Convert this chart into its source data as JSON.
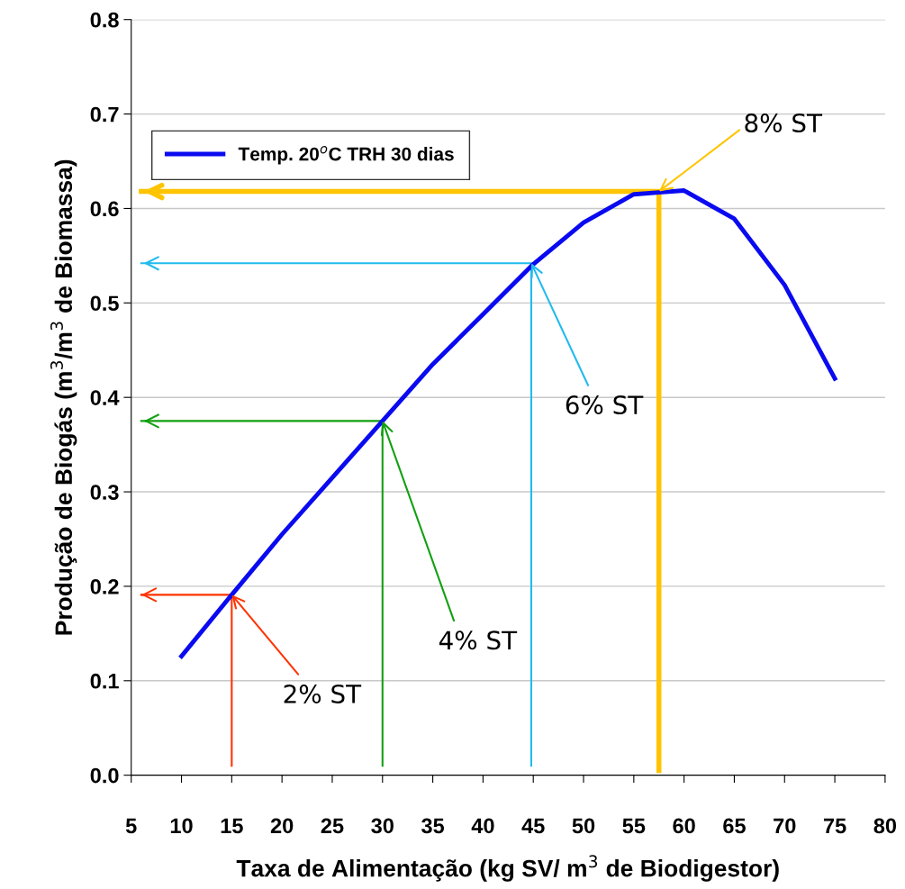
{
  "chart_data": {
    "type": "line",
    "xlabel": "Taxa de Alimentação (kg SV/ m$^{3}$ de Biodigestor)",
    "ylabel": "Produção de Biogás (m$^{3}$/m$^{3}$ de Biomassa)",
    "xlim": [
      5,
      80
    ],
    "xticks": [
      5,
      10,
      15,
      20,
      25,
      30,
      35,
      40,
      45,
      50,
      55,
      60,
      65,
      70,
      75,
      80
    ],
    "ylim": [
      0,
      0.8
    ],
    "yticks": [
      {
        "value": 0,
        "label": "0.0"
      },
      {
        "value": 0.1,
        "label": "0.1"
      },
      {
        "value": 0.2,
        "label": "0.2"
      },
      {
        "value": 0.3,
        "label": "0.3"
      },
      {
        "value": 0.4,
        "label": "0.4"
      },
      {
        "value": 0.5,
        "label": "0.5"
      },
      {
        "value": 0.6,
        "label": "0.6"
      },
      {
        "value": 0.7,
        "label": "0.7"
      },
      {
        "value": 0.8,
        "label": "0.8"
      }
    ],
    "grid": "y",
    "legend": "top left",
    "line_style": "solid",
    "series": [
      {
        "name": "Temp. 20$^{o}$C TRH 30 dias",
        "color": "#0a0af0",
        "x": [
          10,
          15,
          20,
          25,
          30,
          35,
          40,
          45,
          50,
          55,
          57.5,
          60,
          65,
          70,
          75
        ],
        "values": [
          0.126,
          0.191,
          0.255,
          0.315,
          0.375,
          0.435,
          0.488,
          0.541,
          0.585,
          0.615,
          0.617,
          0.619,
          0.589,
          0.519,
          0.42
        ]
      },
      {
        "color": "#ff3300",
        "x": [
          15,
          15,
          6
        ],
        "values": [
          0.01,
          0.191,
          0.191
        ]
      },
      {
        "color": "#11a011",
        "x": [
          30,
          30,
          6
        ],
        "values": [
          0.01,
          0.375,
          0.375
        ]
      },
      {
        "color": "#22bbee",
        "x": [
          44.8,
          44.8,
          6
        ],
        "values": [
          0.01,
          0.542,
          0.542
        ]
      },
      {
        "color": "#ffc400",
        "x": [
          57.5,
          57.5,
          6
        ],
        "values": [
          0.005,
          0.618,
          0.618
        ]
      }
    ],
    "annotations": [
      {
        "text": "2% ST",
        "x": 15,
        "y": 0.191
      },
      {
        "text": "4% ST",
        "x": 30,
        "y": 0.375
      },
      {
        "text": "6% ST",
        "x": 44.8,
        "y": 0.542
      },
      {
        "text": "8% ST",
        "x": 57.5,
        "y": 0.618
      }
    ]
  }
}
